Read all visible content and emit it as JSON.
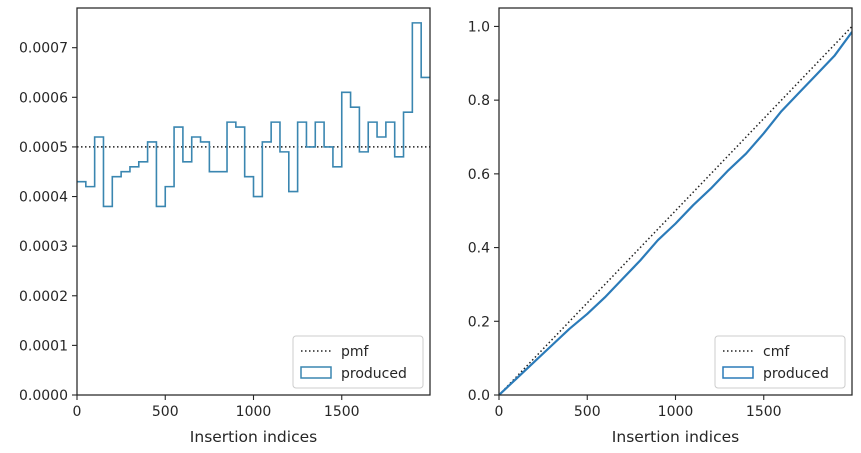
{
  "chart_data": [
    {
      "type": "step-histogram",
      "title": "",
      "xlabel": "Insertion indices",
      "ylabel": "",
      "xlim": [
        0,
        2000
      ],
      "ylim": [
        0,
        0.00078
      ],
      "grid": false,
      "legend_placement": "lower-right",
      "xticks": [
        0,
        500,
        1000,
        1500
      ],
      "xtick_labels": [
        "0",
        "500",
        "1000",
        "1500"
      ],
      "yticks": [
        0,
        0.0001,
        0.0002,
        0.0003,
        0.0004,
        0.0005,
        0.0006,
        0.0007
      ],
      "ytick_labels": [
        "0.0000",
        "0.0001",
        "0.0002",
        "0.0003",
        "0.0004",
        "0.0005",
        "0.0006",
        "0.0007"
      ],
      "series": [
        {
          "name": "pmf",
          "kind": "reference-line",
          "style": "dotted",
          "color": "#222222",
          "y": 0.0005
        },
        {
          "name": "produced",
          "kind": "step",
          "color": "#3a86b0",
          "bin_edges": [
            0,
            50,
            100,
            150,
            200,
            250,
            300,
            350,
            400,
            450,
            500,
            550,
            600,
            650,
            700,
            750,
            800,
            850,
            900,
            950,
            1000,
            1050,
            1100,
            1150,
            1200,
            1250,
            1300,
            1350,
            1400,
            1450,
            1500,
            1550,
            1600,
            1650,
            1700,
            1750,
            1800,
            1850,
            1900,
            1950,
            2000
          ],
          "values": [
            0.00043,
            0.00042,
            0.00052,
            0.00038,
            0.00044,
            0.00045,
            0.00046,
            0.00047,
            0.00051,
            0.00038,
            0.00042,
            0.00054,
            0.00047,
            0.00052,
            0.00051,
            0.00045,
            0.00045,
            0.00055,
            0.00054,
            0.00044,
            0.0004,
            0.00051,
            0.00055,
            0.00049,
            0.00041,
            0.00055,
            0.0005,
            0.00055,
            0.0005,
            0.00046,
            0.00061,
            0.00058,
            0.00049,
            0.00055,
            0.00052,
            0.00055,
            0.00048,
            0.00057,
            0.00075,
            0.00064
          ]
        }
      ]
    },
    {
      "type": "line",
      "title": "",
      "xlabel": "Insertion indices",
      "ylabel": "",
      "xlim": [
        0,
        2000
      ],
      "ylim": [
        0,
        1.05
      ],
      "grid": false,
      "legend_placement": "lower-right",
      "xticks": [
        0,
        500,
        1000,
        1500
      ],
      "xtick_labels": [
        "0",
        "500",
        "1000",
        "1500"
      ],
      "yticks": [
        0,
        0.2,
        0.4,
        0.6,
        0.8,
        1.0
      ],
      "ytick_labels": [
        "0.0",
        "0.2",
        "0.4",
        "0.6",
        "0.8",
        "1.0"
      ],
      "series": [
        {
          "name": "cmf",
          "kind": "reference-line",
          "style": "dotted",
          "color": "#222222",
          "x": [
            0,
            2000
          ],
          "y": [
            0,
            1.0
          ]
        },
        {
          "name": "produced",
          "kind": "line",
          "color": "#2b7bb9",
          "x": [
            0,
            100,
            200,
            300,
            400,
            500,
            600,
            700,
            800,
            900,
            1000,
            1100,
            1200,
            1300,
            1400,
            1500,
            1600,
            1700,
            1800,
            1900,
            2000
          ],
          "y": [
            0,
            0.045,
            0.09,
            0.135,
            0.18,
            0.22,
            0.265,
            0.315,
            0.365,
            0.42,
            0.465,
            0.515,
            0.56,
            0.61,
            0.655,
            0.71,
            0.77,
            0.82,
            0.87,
            0.92,
            0.985
          ]
        }
      ]
    }
  ]
}
